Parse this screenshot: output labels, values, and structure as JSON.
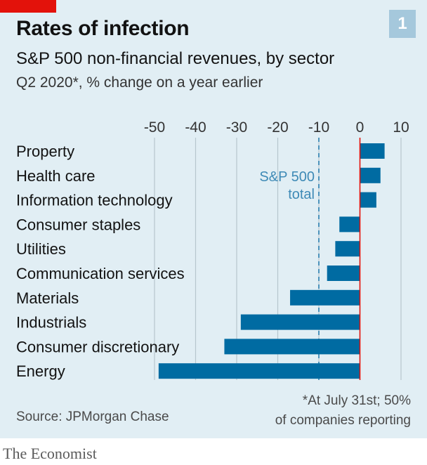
{
  "header": {
    "title": "Rates of infection",
    "subtitle": "S&P 500 non-financial revenues, by sector",
    "caption": "Q2 2020*, % change on a year earlier",
    "badge": "1"
  },
  "colors": {
    "background": "#e1eef4",
    "bar": "#006ba2",
    "accent_red": "#e3120b",
    "reference": "#3e8ab6",
    "gridline": "#b7c6ce",
    "badge": "#a5c8dc"
  },
  "chart_data": {
    "type": "bar",
    "orientation": "horizontal",
    "categories": [
      "Property",
      "Health care",
      "Information technology",
      "Consumer staples",
      "Utilities",
      "Communication services",
      "Materials",
      "Industrials",
      "Consumer discretionary",
      "Energy"
    ],
    "values": [
      6,
      5,
      4,
      -5,
      -6,
      -8,
      -17,
      -29,
      -33,
      -49
    ],
    "xlim": [
      -50,
      10
    ],
    "xticks": [
      "-50",
      "-40",
      "-30",
      "-20",
      "-10",
      "0",
      "10"
    ],
    "xtick_values": [
      -50,
      -40,
      -30,
      -20,
      -10,
      0,
      10
    ],
    "grid": true,
    "reference_line": {
      "value": -10,
      "label_line1": "S&P 500",
      "label_line2": "total"
    }
  },
  "footer": {
    "source": "Source: JPMorgan Chase",
    "footnote_line1": "*At July 31st; 50%",
    "footnote_line2": "of companies reporting",
    "brand": "The Economist"
  }
}
